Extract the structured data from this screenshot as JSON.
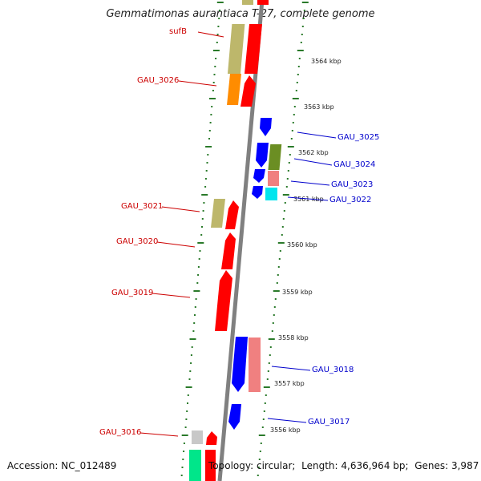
{
  "title": "Gemmatimonas aurantiaca T-27, complete genome",
  "footer": {
    "accession_label": "Accession:",
    "accession": "NC_012489",
    "topology_label": "Topology:",
    "topology": "circular",
    "length_label": "Length:",
    "length": "4,636,964 bp",
    "genes_label": "Genes:",
    "genes": "3,987"
  },
  "colors": {
    "backbone": "#808080",
    "label_left": "#cc0000",
    "label_right": "#0000cc",
    "tick_major": "#2a7a2a",
    "tick_minor": "#2a7a2a"
  },
  "kbp_labels": [
    "3564 kbp",
    "3563 kbp",
    "3562 kbp",
    "3561 kbp",
    "3560 kbp",
    "3559 kbp",
    "3558 kbp",
    "3557 kbp",
    "3556 kbp"
  ],
  "left_labels": [
    "sufB",
    "GAU_3026",
    "GAU_3021",
    "GAU_3020",
    "GAU_3019",
    "GAU_3016"
  ],
  "right_labels": [
    "GAU_3025",
    "GAU_3024",
    "GAU_3023",
    "GAU_3022",
    "GAU_3018",
    "GAU_3017"
  ]
}
